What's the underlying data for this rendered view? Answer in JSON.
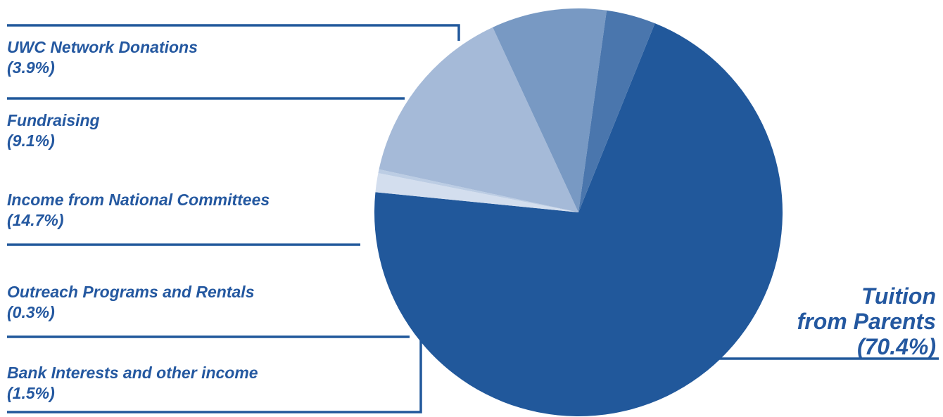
{
  "chart_data": {
    "type": "pie",
    "slices": [
      {
        "label": "Tuition from Parents",
        "display_lines": [
          "Tuition",
          "from Parents",
          "(70.4%)"
        ],
        "value": 70.4,
        "color": "#21589b"
      },
      {
        "label": "Bank Interests and other income",
        "display_lines": [
          "Bank Interests and other income",
          "(1.5%)"
        ],
        "value": 1.5,
        "color": "#d3deee"
      },
      {
        "label": "Outreach Programs and Rentals",
        "display_lines": [
          "Outreach Programs and Rentals",
          "(0.3%)"
        ],
        "value": 0.3,
        "color": "#bccde4"
      },
      {
        "label": "Income from National Committees",
        "display_lines": [
          "Income from National Committees",
          "(14.7%)"
        ],
        "value": 14.7,
        "color": "#a5bad8"
      },
      {
        "label": "Fundraising",
        "display_lines": [
          "Fundraising",
          "(9.1%)"
        ],
        "value": 9.1,
        "color": "#7899c3"
      },
      {
        "label": "UWC Network Donations",
        "display_lines": [
          "UWC Network Donations",
          "(3.9%)"
        ],
        "value": 3.9,
        "color": "#4a76ad"
      }
    ],
    "leader_color": "#21589b",
    "label_color": "#2458a0"
  }
}
